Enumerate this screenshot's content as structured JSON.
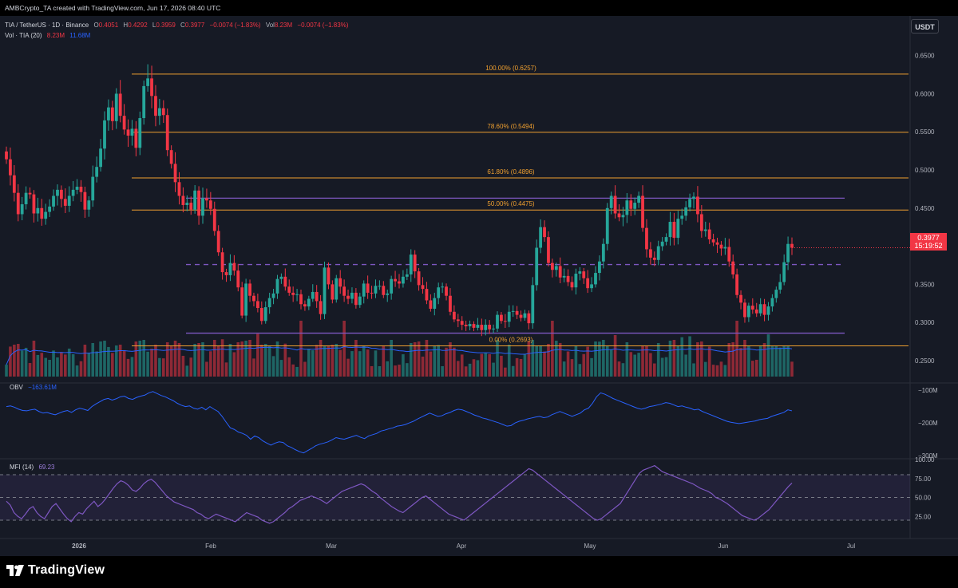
{
  "header": {
    "attribution": "AMBCrypto_TA created with TradingView.com, Jun 17, 2026 08:40 UTC",
    "symbol": "TIA / TetherUS · 1D · Binance",
    "ohlc": {
      "o_label": "O",
      "o": "0.4051",
      "h_label": "H",
      "h": "0.4292",
      "l_label": "L",
      "l": "0.3959",
      "c_label": "C",
      "c": "0.3977",
      "change": "−0.0074 (−1.83%)"
    },
    "vol": {
      "label": "Vol",
      "value": "8.23M",
      "change": "−0.0074 (−1.83%)"
    },
    "vol_ind": {
      "label": "Vol · TIA (20)",
      "value": "8.23M",
      "ma": "11.68M"
    },
    "currency_button": "USDT"
  },
  "price_tag": {
    "price": "0.3977",
    "countdown": "15:19:52"
  },
  "indicators": {
    "obv": {
      "label": "OBV",
      "value": "−163.61M"
    },
    "mfi": {
      "label": "MFI (14)",
      "value": "69.23"
    }
  },
  "logo": {
    "text": "TradingView",
    "icon": "tradingview-logo-icon"
  },
  "colors": {
    "background": "#161a25",
    "up": "#26a69a",
    "down": "#f23645",
    "fib": "#f0a030",
    "range_lines": "#7e57c2",
    "obv_line": "#2962ff",
    "mfi_line": "#7e57c2"
  },
  "chart_data": {
    "type": "candlestick",
    "price_axis": {
      "ticks": [
        "0.6500",
        "0.6000",
        "0.5500",
        "0.5000",
        "0.4500",
        "0.4000",
        "0.3500",
        "0.3000",
        "0.2500"
      ],
      "ylim": [
        0.228,
        0.658
      ]
    },
    "time_axis": {
      "labels": [
        "2026",
        "Feb",
        "Mar",
        "Apr",
        "May",
        "Jun",
        "Jul"
      ]
    },
    "fib_levels": [
      {
        "label": "100.00% (0.6257)",
        "value": 0.6257
      },
      {
        "label": "78.60% (0.5494)",
        "value": 0.5494
      },
      {
        "label": "61.80% (0.4896)",
        "value": 0.4896
      },
      {
        "label": "50.00% (0.4475)",
        "value": 0.4475
      },
      {
        "label": "0.00% (0.2693)",
        "value": 0.2693
      }
    ],
    "range_levels": {
      "high": 0.463,
      "mid": 0.376,
      "low": 0.286
    },
    "close": [
      0.514,
      0.493,
      0.47,
      0.442,
      0.455,
      0.47,
      0.468,
      0.443,
      0.45,
      0.436,
      0.445,
      0.452,
      0.466,
      0.474,
      0.462,
      0.453,
      0.466,
      0.474,
      0.478,
      0.471,
      0.448,
      0.46,
      0.491,
      0.504,
      0.528,
      0.565,
      0.582,
      0.564,
      0.6,
      0.571,
      0.553,
      0.545,
      0.554,
      0.529,
      0.568,
      0.61,
      0.62,
      0.597,
      0.571,
      0.581,
      0.572,
      0.526,
      0.508,
      0.484,
      0.466,
      0.454,
      0.457,
      0.448,
      0.473,
      0.44,
      0.463,
      0.46,
      0.449,
      0.42,
      0.392,
      0.366,
      0.362,
      0.378,
      0.368,
      0.346,
      0.309,
      0.351,
      0.335,
      0.328,
      0.319,
      0.302,
      0.32,
      0.332,
      0.338,
      0.357,
      0.36,
      0.347,
      0.339,
      0.336,
      0.337,
      0.324,
      0.321,
      0.331,
      0.34,
      0.328,
      0.311,
      0.372,
      0.35,
      0.33,
      0.358,
      0.347,
      0.335,
      0.331,
      0.339,
      0.323,
      0.334,
      0.351,
      0.339,
      0.338,
      0.348,
      0.348,
      0.336,
      0.338,
      0.357,
      0.354,
      0.351,
      0.36,
      0.363,
      0.389,
      0.367,
      0.349,
      0.344,
      0.329,
      0.318,
      0.332,
      0.346,
      0.347,
      0.335,
      0.314,
      0.304,
      0.302,
      0.297,
      0.295,
      0.298,
      0.293,
      0.297,
      0.29,
      0.297,
      0.291,
      0.292,
      0.31,
      0.302,
      0.301,
      0.314,
      0.315,
      0.31,
      0.306,
      0.312,
      0.299,
      0.349,
      0.398,
      0.425,
      0.412,
      0.378,
      0.369,
      0.374,
      0.359,
      0.361,
      0.353,
      0.346,
      0.364,
      0.367,
      0.358,
      0.345,
      0.35,
      0.365,
      0.38,
      0.403,
      0.45,
      0.466,
      0.443,
      0.438,
      0.441,
      0.46,
      0.449,
      0.457,
      0.466,
      0.424,
      0.396,
      0.385,
      0.382,
      0.4,
      0.406,
      0.412,
      0.432,
      0.411,
      0.436,
      0.44,
      0.451,
      0.462,
      0.465,
      0.442,
      0.42,
      0.422,
      0.409,
      0.405,
      0.402,
      0.397,
      0.399,
      0.38,
      0.363,
      0.336,
      0.326,
      0.307,
      0.322,
      0.317,
      0.312,
      0.324,
      0.31,
      0.321,
      0.332,
      0.343,
      0.353,
      0.379,
      0.403,
      0.398
    ],
    "obv": {
      "axis_ticks": [
        "−100M",
        "−200M",
        "−300M"
      ],
      "ylim": [
        -300,
        -85
      ],
      "values": [
        -150,
        -148,
        -152,
        -158,
        -162,
        -163,
        -160,
        -158,
        -165,
        -170,
        -168,
        -172,
        -175,
        -170,
        -165,
        -162,
        -168,
        -160,
        -155,
        -158,
        -162,
        -150,
        -142,
        -135,
        -128,
        -125,
        -130,
        -126,
        -120,
        -118,
        -125,
        -128,
        -122,
        -118,
        -115,
        -108,
        -104,
        -110,
        -116,
        -120,
        -126,
        -132,
        -140,
        -146,
        -150,
        -148,
        -155,
        -158,
        -152,
        -160,
        -150,
        -158,
        -165,
        -180,
        -198,
        -215,
        -220,
        -228,
        -232,
        -238,
        -250,
        -240,
        -245,
        -255,
        -262,
        -268,
        -262,
        -258,
        -260,
        -270,
        -275,
        -282,
        -288,
        -292,
        -285,
        -278,
        -270,
        -265,
        -262,
        -258,
        -252,
        -245,
        -248,
        -250,
        -246,
        -242,
        -238,
        -244,
        -248,
        -240,
        -236,
        -232,
        -225,
        -222,
        -218,
        -215,
        -210,
        -208,
        -205,
        -200,
        -195,
        -188,
        -182,
        -176,
        -170,
        -175,
        -180,
        -178,
        -172,
        -168,
        -162,
        -158,
        -160,
        -165,
        -170,
        -176,
        -180,
        -185,
        -188,
        -192,
        -196,
        -200,
        -205,
        -210,
        -208,
        -200,
        -195,
        -192,
        -188,
        -185,
        -182,
        -180,
        -184,
        -182,
        -175,
        -170,
        -165,
        -170,
        -175,
        -180,
        -175,
        -170,
        -160,
        -155,
        -140,
        -120,
        -108,
        -112,
        -118,
        -125,
        -130,
        -135,
        -140,
        -145,
        -150,
        -155,
        -158,
        -155,
        -150,
        -148,
        -145,
        -142,
        -138,
        -140,
        -145,
        -150,
        -148,
        -152,
        -155,
        -160,
        -158,
        -165,
        -170,
        -175,
        -180,
        -185,
        -190,
        -195,
        -198,
        -200,
        -202,
        -200,
        -198,
        -196,
        -194,
        -190,
        -188,
        -186,
        -180,
        -176,
        -172,
        -168,
        -160,
        -163
      ]
    },
    "mfi": {
      "axis_ticks": [
        "100.00",
        "75.00",
        "50.00",
        "25.00"
      ],
      "ylim": [
        0,
        100
      ],
      "levels": [
        80,
        50,
        20
      ],
      "values": [
        45,
        40,
        30,
        25,
        22,
        28,
        35,
        38,
        30,
        25,
        22,
        30,
        38,
        42,
        35,
        28,
        22,
        18,
        25,
        30,
        28,
        35,
        40,
        45,
        38,
        42,
        48,
        55,
        62,
        68,
        72,
        70,
        66,
        60,
        58,
        62,
        68,
        72,
        74,
        70,
        64,
        58,
        52,
        48,
        44,
        42,
        40,
        38,
        36,
        34,
        30,
        28,
        24,
        22,
        25,
        28,
        26,
        24,
        22,
        20,
        18,
        22,
        26,
        30,
        28,
        26,
        24,
        20,
        18,
        16,
        18,
        22,
        26,
        30,
        35,
        38,
        42,
        46,
        48,
        50,
        52,
        50,
        48,
        45,
        42,
        46,
        50,
        54,
        58,
        60,
        62,
        64,
        66,
        68,
        66,
        62,
        58,
        55,
        50,
        46,
        42,
        38,
        35,
        32,
        30,
        34,
        38,
        42,
        46,
        50,
        52,
        48,
        44,
        40,
        36,
        32,
        28,
        26,
        24,
        22,
        20,
        24,
        28,
        32,
        36,
        40,
        44,
        48,
        52,
        56,
        60,
        64,
        68,
        72,
        76,
        80,
        84,
        88,
        86,
        82,
        78,
        74,
        70,
        66,
        62,
        58,
        54,
        50,
        46,
        42,
        38,
        34,
        30,
        26,
        22,
        20,
        22,
        26,
        30,
        34,
        38,
        42,
        50,
        58,
        66,
        74,
        82,
        86,
        88,
        90,
        92,
        88,
        84,
        82,
        80,
        78,
        76,
        74,
        72,
        70,
        68,
        65,
        62,
        60,
        58,
        55,
        50,
        48,
        45,
        42,
        38,
        34,
        30,
        26,
        24,
        22,
        20,
        22,
        26,
        30,
        34,
        40,
        46,
        52,
        58,
        64,
        69
      ]
    }
  }
}
